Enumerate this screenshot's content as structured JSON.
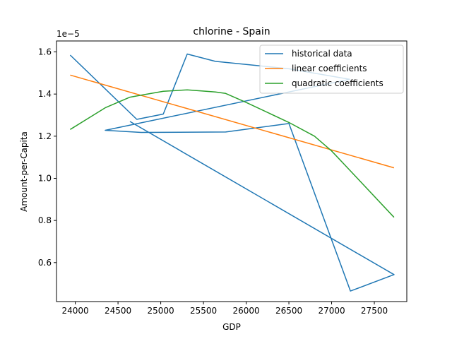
{
  "chart_data": {
    "type": "line",
    "title": "chlorine - Spain",
    "xlabel": "GDP",
    "ylabel": "Amount-per-Capita",
    "y_offset_label": "1e−5",
    "xlim": [
      23780,
      27880
    ],
    "ylim": [
      0.415,
      1.652
    ],
    "x_ticks": [
      24000,
      24500,
      25000,
      25500,
      26000,
      26500,
      27000,
      27500
    ],
    "y_ticks": [
      0.6,
      0.8,
      1.0,
      1.2,
      1.4,
      1.6
    ],
    "x_tick_labels": [
      "24000",
      "24500",
      "25000",
      "25500",
      "26000",
      "26500",
      "27000",
      "27500"
    ],
    "y_tick_labels": [
      "0.6",
      "0.8",
      "1.0",
      "1.2",
      "1.4",
      "1.6"
    ],
    "grid": false,
    "legend_position": "top-right",
    "series": [
      {
        "name": "historical data",
        "color": "#1f77b4",
        "x": [
          23940,
          24720,
          25030,
          25310,
          25640,
          26500,
          27210,
          24350,
          24770,
          25760,
          26500,
          27220,
          27730,
          24640
        ],
        "y": [
          1.585,
          1.28,
          1.305,
          1.59,
          1.555,
          1.52,
          1.47,
          1.228,
          1.218,
          1.22,
          1.26,
          0.465,
          0.543,
          1.27
        ]
      },
      {
        "name": "linear coefficients",
        "color": "#ff7f0e",
        "x": [
          23940,
          27730
        ],
        "y": [
          1.49,
          1.05
        ]
      },
      {
        "name": "quadratic coefficients",
        "color": "#2ca02c",
        "x": [
          23940,
          24350,
          24640,
          24770,
          25030,
          25310,
          25640,
          25760,
          26000,
          26500,
          26800,
          27000,
          27210,
          27730
        ],
        "y": [
          1.232,
          1.335,
          1.385,
          1.395,
          1.413,
          1.42,
          1.41,
          1.403,
          1.36,
          1.265,
          1.2,
          1.13,
          1.04,
          0.815
        ]
      }
    ]
  }
}
